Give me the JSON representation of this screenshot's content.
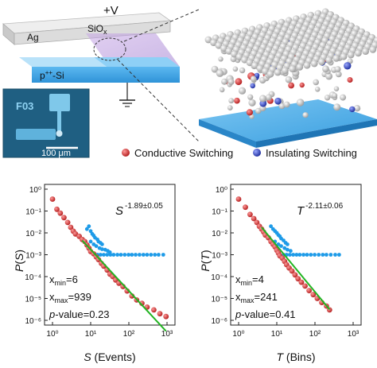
{
  "device": {
    "voltage": "+V",
    "top_electrode": "Ag",
    "oxide": "SiO",
    "oxide_sub": "x",
    "substrate": "p",
    "substrate_sup": "++",
    "substrate_suffix": "-Si",
    "inset_label": "F03",
    "scale_bar": "100 μm"
  },
  "legend": {
    "conductive": "Conductive Switching",
    "insulating": "Insulating Switching",
    "conductive_color": "#d42a2a",
    "insulating_color": "#2a3fb5",
    "fit_color": "#22b422",
    "scatter_color": "#1e9be8"
  },
  "charts": [
    {
      "ylabel_var": "P",
      "ylabel_arg": "S",
      "xlabel_var": "S",
      "xlabel_unit": " (Events)",
      "exp_var": "S",
      "exp_value": "-1.89±0.05",
      "stats": {
        "xmin": "6",
        "xmax": "939",
        "pvalue": "0.23"
      }
    },
    {
      "ylabel_var": "P",
      "ylabel_arg": "T",
      "xlabel_var": "T",
      "xlabel_unit": " (Bins)",
      "exp_var": "T",
      "exp_value": "-2.11±0.06",
      "stats": {
        "xmin": "4",
        "xmax": "241",
        "pvalue": "0.41"
      }
    }
  ],
  "chart_data": [
    {
      "type": "scatter",
      "x_scale": "log",
      "y_scale": "log",
      "xlim": [
        1,
        1000
      ],
      "ylim": [
        1e-06,
        1
      ],
      "x_ticks": [
        "10^0",
        "10^1",
        "10^2",
        "10^3"
      ],
      "y_ticks": [
        "10^-6",
        "10^-5",
        "10^-4",
        "10^-3",
        "10^-2",
        "10^-1",
        "10^0"
      ],
      "series": [
        {
          "points": [
            [
              1,
              0.35
            ],
            [
              1.3,
              0.12
            ],
            [
              1.6,
              0.08
            ],
            [
              2,
              0.05
            ],
            [
              2.5,
              0.03
            ],
            [
              3,
              0.018
            ],
            [
              3.5,
              0.012
            ],
            [
              4,
              0.009
            ],
            [
              5,
              0.007
            ],
            [
              6,
              0.005
            ],
            [
              7,
              0.004
            ],
            [
              8,
              0.0028
            ],
            [
              9,
              0.002
            ],
            [
              10,
              0.0014
            ],
            [
              12,
              0.0011
            ],
            [
              14,
              0.0008
            ],
            [
              16,
              0.0006
            ],
            [
              19,
              0.0004
            ],
            [
              22,
              0.0003
            ],
            [
              27,
              0.0002
            ],
            [
              32,
              0.00013
            ],
            [
              38,
              0.0001
            ],
            [
              45,
              7e-05
            ],
            [
              55,
              5e-05
            ],
            [
              70,
              3.5e-05
            ],
            [
              90,
              2.2e-05
            ],
            [
              120,
              1.3e-05
            ],
            [
              160,
              8.5e-06
            ],
            [
              220,
              6e-06
            ],
            [
              300,
              4e-06
            ],
            [
              450,
              3e-06
            ],
            [
              650,
              2e-06
            ],
            [
              940,
              1.5e-06
            ]
          ]
        },
        {
          "points": [
            [
              8,
              0.015
            ],
            [
              9,
              0.02
            ],
            [
              10,
              0.012
            ],
            [
              11,
              0.009
            ],
            [
              12,
              0.0075
            ],
            [
              13,
              0.006
            ],
            [
              15,
              0.005
            ],
            [
              16,
              0.004
            ],
            [
              18,
              0.0035
            ],
            [
              20,
              0.003
            ],
            [
              10,
              0.004
            ],
            [
              12,
              0.003
            ],
            [
              14,
              0.0025
            ],
            [
              17,
              0.002
            ],
            [
              20,
              0.0018
            ],
            [
              24,
              0.0017
            ],
            [
              28,
              0.0015
            ],
            [
              32,
              0.0013
            ],
            [
              15,
              0.001
            ],
            [
              18,
              0.001
            ],
            [
              22,
              0.001
            ],
            [
              27,
              0.001
            ],
            [
              33,
              0.001
            ],
            [
              40,
              0.001
            ],
            [
              50,
              0.001
            ],
            [
              62,
              0.001
            ],
            [
              78,
              0.001
            ],
            [
              98,
              0.001
            ],
            [
              120,
              0.001
            ],
            [
              150,
              0.001
            ],
            [
              190,
              0.001
            ],
            [
              240,
              0.001
            ],
            [
              300,
              0.001
            ],
            [
              380,
              0.001
            ],
            [
              480,
              0.001
            ],
            [
              600,
              0.001
            ],
            [
              800,
              0.001
            ]
          ]
        }
      ],
      "fit": {
        "exponent": -1.89,
        "x_range": [
          6,
          939
        ],
        "y_start": 0.0045
      }
    },
    {
      "type": "scatter",
      "x_scale": "log",
      "y_scale": "log",
      "xlim": [
        1,
        1000
      ],
      "ylim": [
        1e-06,
        1
      ],
      "x_ticks": [
        "10^0",
        "10^1",
        "10^2",
        "10^3"
      ],
      "y_ticks": [
        "10^-6",
        "10^-5",
        "10^-4",
        "10^-3",
        "10^-2",
        "10^-1",
        "10^0"
      ],
      "series": [
        {
          "points": [
            [
              1,
              0.35
            ],
            [
              1.5,
              0.15
            ],
            [
              2,
              0.07
            ],
            [
              2.5,
              0.045
            ],
            [
              3,
              0.03
            ],
            [
              3.5,
              0.02
            ],
            [
              4,
              0.015
            ],
            [
              4.5,
              0.011
            ],
            [
              5,
              0.008
            ],
            [
              6,
              0.006
            ],
            [
              7,
              0.004
            ],
            [
              8,
              0.003
            ],
            [
              9,
              0.0023
            ],
            [
              10,
              0.0016
            ],
            [
              11,
              0.0012
            ],
            [
              12,
              0.0009
            ],
            [
              14,
              0.0007
            ],
            [
              16,
              0.0005
            ],
            [
              18,
              0.00035
            ],
            [
              21,
              0.00025
            ],
            [
              25,
              0.00018
            ],
            [
              30,
              0.00012
            ],
            [
              36,
              8e-05
            ],
            [
              44,
              5.5e-05
            ],
            [
              55,
              3.7e-05
            ],
            [
              70,
              2.3e-05
            ],
            [
              90,
              1.5e-05
            ],
            [
              115,
              1e-05
            ],
            [
              150,
              6.5e-06
            ],
            [
              200,
              4.5e-06
            ],
            [
              240,
              3e-06
            ]
          ]
        },
        {
          "points": [
            [
              7,
              0.02
            ],
            [
              8,
              0.015
            ],
            [
              9,
              0.012
            ],
            [
              10,
              0.01
            ],
            [
              11,
              0.008
            ],
            [
              12,
              0.007
            ],
            [
              13,
              0.0055
            ],
            [
              15,
              0.0045
            ],
            [
              17,
              0.0035
            ],
            [
              19,
              0.003
            ],
            [
              9,
              0.004
            ],
            [
              11,
              0.003
            ],
            [
              13,
              0.0025
            ],
            [
              16,
              0.002
            ],
            [
              19,
              0.0017
            ],
            [
              23,
              0.0015
            ],
            [
              12,
              0.001
            ],
            [
              15,
              0.001
            ],
            [
              18,
              0.001
            ],
            [
              22,
              0.001
            ],
            [
              27,
              0.001
            ],
            [
              33,
              0.001
            ],
            [
              40,
              0.001
            ],
            [
              50,
              0.001
            ],
            [
              62,
              0.001
            ],
            [
              78,
              0.001
            ],
            [
              98,
              0.001
            ],
            [
              125,
              0.001
            ],
            [
              160,
              0.001
            ],
            [
              200,
              0.001
            ],
            [
              260,
              0.001
            ],
            [
              340,
              0.001
            ],
            [
              430,
              0.001
            ]
          ]
        }
      ],
      "fit": {
        "exponent": -2.11,
        "x_range": [
          4,
          241
        ],
        "y_start": 0.018
      }
    }
  ]
}
